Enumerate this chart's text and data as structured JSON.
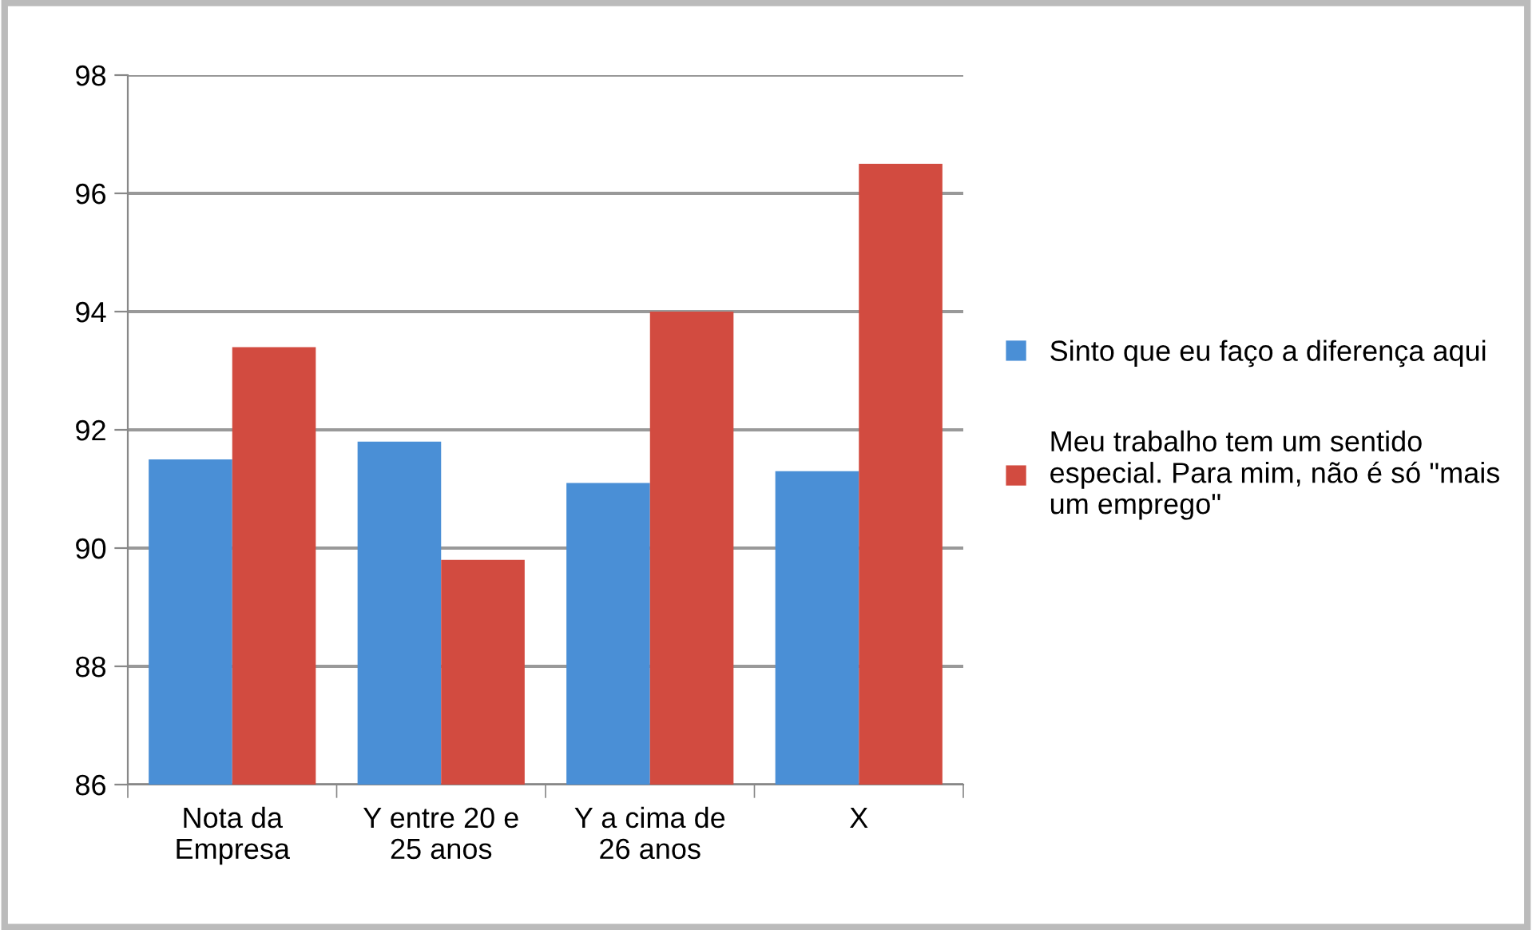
{
  "chart_data": {
    "type": "bar",
    "categories": [
      "Nota da\nEmpresa",
      "Y entre 20 e\n25 anos",
      "Y a cima de\n26 anos",
      "X"
    ],
    "series": [
      {
        "name": "Sinto que eu faço a diferença aqui",
        "color": "#4a8fd6",
        "values": [
          91.5,
          91.8,
          91.1,
          91.3
        ]
      },
      {
        "name": "Meu trabalho tem um sentido especial. Para mim, não é só \"mais um emprego\"",
        "color": "#d24b40",
        "values": [
          93.4,
          89.8,
          94.0,
          96.5
        ]
      }
    ],
    "ylim": [
      86,
      98
    ],
    "yticks": [
      86,
      88,
      90,
      92,
      94,
      96,
      98
    ],
    "grid": "y",
    "legend": "right"
  }
}
